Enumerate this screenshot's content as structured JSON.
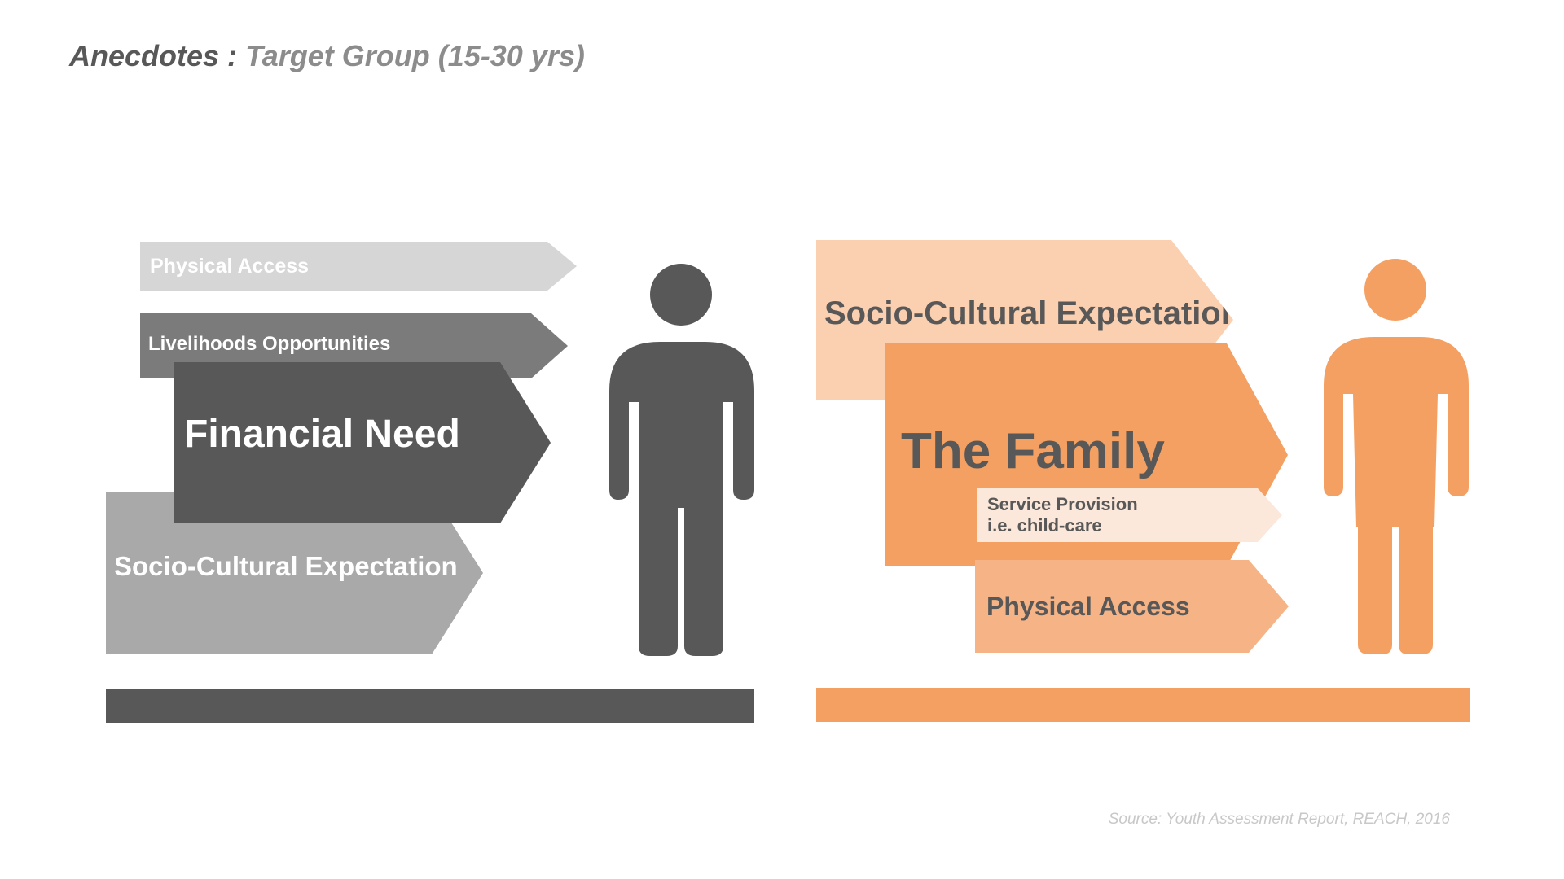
{
  "title": {
    "main": "Anecdotes :",
    "sub": "Target Group (15-30 yrs)"
  },
  "left_panel": {
    "color": "#585858",
    "arrows": {
      "physical_access": "Physical Access",
      "livelihoods": "Livelihoods Opportunities",
      "financial_need": "Financial Need",
      "socio_cultural": "Socio-Cultural Expectation"
    },
    "figure_icon": "male-person-icon"
  },
  "right_panel": {
    "color": "#f4a062",
    "arrows": {
      "socio_cultural": "Socio-Cultural Expectation",
      "the_family": "The Family",
      "service_provision_line1": "Service Provision",
      "service_provision_line2": "i.e. child-care",
      "physical_access": "Physical Access"
    },
    "figure_icon": "female-person-icon"
  },
  "source": "Source: Youth Assessment Report, REACH, 2016"
}
